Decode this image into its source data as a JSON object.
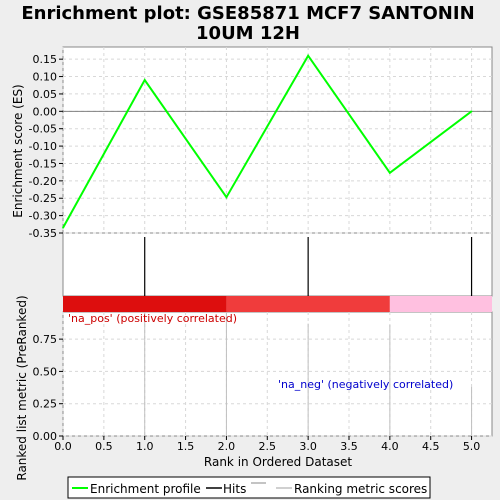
{
  "chart_data": {
    "type": "line",
    "title_line1": "Enrichment plot: GSE85871 MCF7 SANTONIN",
    "title_line2": "10UM 12H",
    "xlabel": "Rank in Ordered Dataset",
    "x_range": [
      0,
      5.25
    ],
    "x_ticks": [
      "0.0",
      "0.5",
      "1.0",
      "1.5",
      "2.0",
      "2.5",
      "3.0",
      "3.5",
      "4.0",
      "4.5",
      "5.0"
    ],
    "es_panel": {
      "ylabel": "Enrichment score (ES)",
      "ylim": [
        -0.35,
        0.185
      ],
      "y_ticks": [
        "0.15",
        "0.10",
        "0.05",
        "0.00",
        "-0.05",
        "-0.10",
        "-0.15",
        "-0.20",
        "-0.25",
        "-0.30",
        "-0.35"
      ],
      "series": [
        {
          "name": "Enrichment profile",
          "color": "#00ff00",
          "x": [
            0,
            1,
            2,
            3,
            4,
            5
          ],
          "y": [
            -0.335,
            0.09,
            -0.247,
            0.16,
            -0.177,
            0.0
          ]
        }
      ]
    },
    "hits": [
      1,
      3,
      5
    ],
    "color_bar": [
      {
        "from": 0,
        "to": 2,
        "color": "#dd0e0e"
      },
      {
        "from": 2,
        "to": 4,
        "color": "#f03c3c"
      },
      {
        "from": 4,
        "to": 5.25,
        "color": "#ffc0e0"
      }
    ],
    "rank_panel": {
      "ylabel": "Ranked list metric (PreRanked)",
      "ylim": [
        0,
        0.96
      ],
      "y_ticks": [
        "0.00",
        "0.25",
        "0.50",
        "0.75"
      ],
      "x": [
        1,
        2,
        3,
        4,
        5
      ],
      "values": [
        0.97,
        0.97,
        0.87,
        0.86,
        0.38
      ],
      "label_pos": "'na_pos' (positively correlated)",
      "label_neg": "'na_neg' (negatively correlated)"
    },
    "legend": {
      "placement": "bottom",
      "items": [
        "Enrichment profile",
        "Hits",
        "Ranking metric scores"
      ]
    },
    "colors": {
      "profile": "#00ff00",
      "hits": "#000000",
      "metric": "#c0c0c0",
      "pos_label": "#cc0000",
      "neg_label": "#0000cc",
      "grid": "#d8d8d8"
    }
  }
}
